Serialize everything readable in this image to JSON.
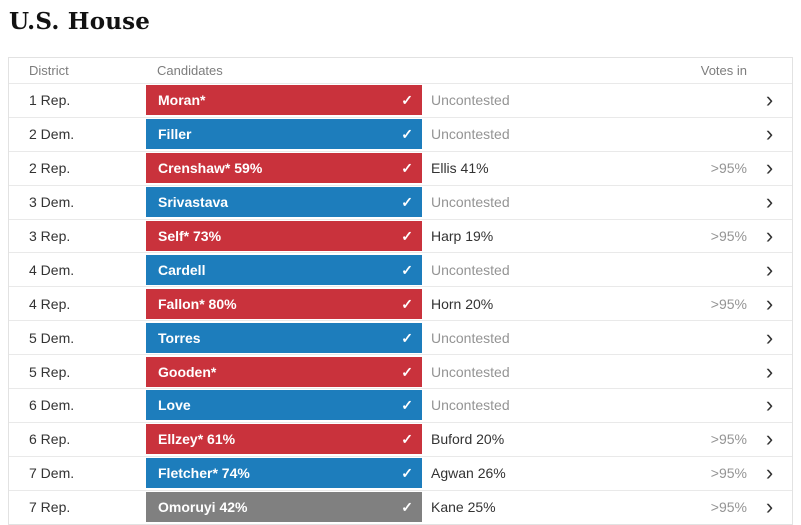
{
  "page": {
    "title": "U.S. House"
  },
  "colors": {
    "republican": "#c9323c",
    "democrat": "#1d7dbc",
    "undecided": "#808080"
  },
  "icons": {
    "winner_check": "✓",
    "row_chevron": "›"
  },
  "table": {
    "headers": {
      "district": "District",
      "candidates": "Candidates",
      "votes_in": "Votes in"
    },
    "rows": [
      {
        "district": "1 Rep.",
        "winner": "Moran*",
        "party": "republican",
        "opponent": "Uncontested",
        "votes_in": ""
      },
      {
        "district": "2 Dem.",
        "winner": "Filler",
        "party": "democrat",
        "opponent": "Uncontested",
        "votes_in": ""
      },
      {
        "district": "2 Rep.",
        "winner": "Crenshaw* 59%",
        "party": "republican",
        "opponent": "Ellis 41%",
        "votes_in": ">95%"
      },
      {
        "district": "3 Dem.",
        "winner": "Srivastava",
        "party": "democrat",
        "opponent": "Uncontested",
        "votes_in": ""
      },
      {
        "district": "3 Rep.",
        "winner": "Self* 73%",
        "party": "republican",
        "opponent": "Harp 19%",
        "votes_in": ">95%"
      },
      {
        "district": "4 Dem.",
        "winner": "Cardell",
        "party": "democrat",
        "opponent": "Uncontested",
        "votes_in": ""
      },
      {
        "district": "4 Rep.",
        "winner": "Fallon* 80%",
        "party": "republican",
        "opponent": "Horn 20%",
        "votes_in": ">95%"
      },
      {
        "district": "5 Dem.",
        "winner": "Torres",
        "party": "democrat",
        "opponent": "Uncontested",
        "votes_in": ""
      },
      {
        "district": "5 Rep.",
        "winner": "Gooden*",
        "party": "republican",
        "opponent": "Uncontested",
        "votes_in": ""
      },
      {
        "district": "6 Dem.",
        "winner": "Love",
        "party": "democrat",
        "opponent": "Uncontested",
        "votes_in": ""
      },
      {
        "district": "6 Rep.",
        "winner": "Ellzey* 61%",
        "party": "republican",
        "opponent": "Buford 20%",
        "votes_in": ">95%"
      },
      {
        "district": "7 Dem.",
        "winner": "Fletcher* 74%",
        "party": "democrat",
        "opponent": "Agwan 26%",
        "votes_in": ">95%"
      },
      {
        "district": "7 Rep.",
        "winner": "Omoruyi 42%",
        "party": "undecided",
        "opponent": "Kane 25%",
        "votes_in": ">95%"
      }
    ]
  }
}
